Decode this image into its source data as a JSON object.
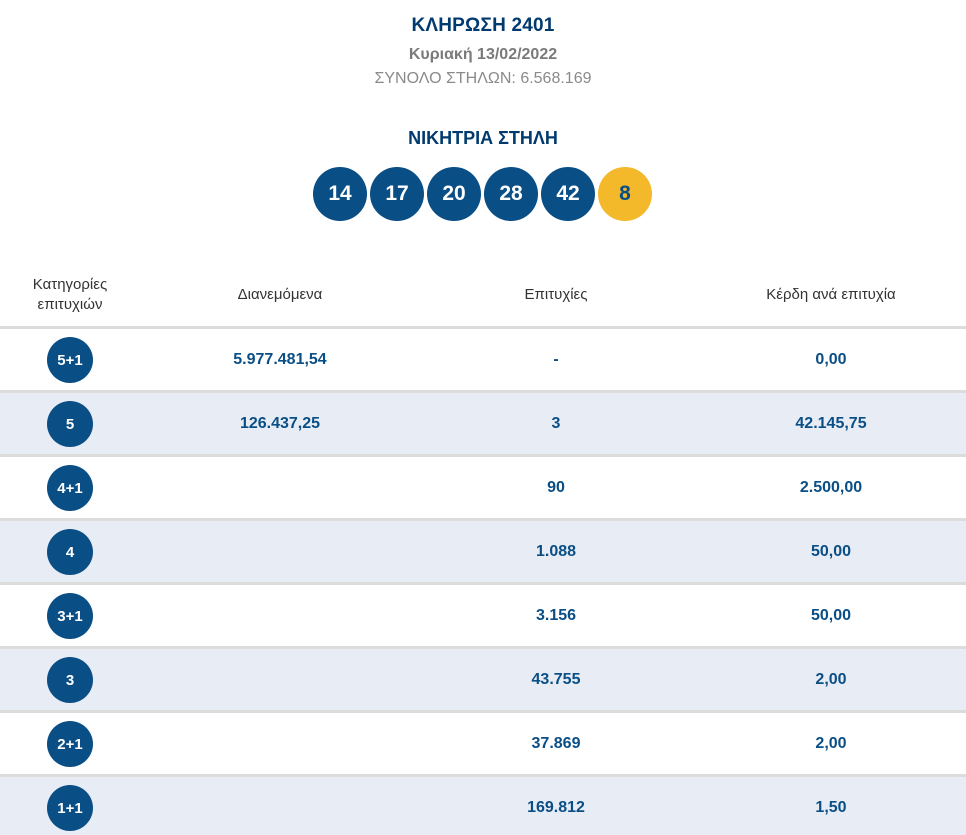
{
  "header": {
    "draw_title": "ΚΛΗΡΩΣΗ 2401",
    "draw_date": "Κυριακή 13/02/2022",
    "total_columns": "ΣΥΝΟΛΟ ΣΤΗΛΩΝ: 6.568.169"
  },
  "winning": {
    "title": "ΝΙΚΗΤΡΙΑ ΣΤΗΛΗ",
    "numbers": [
      "14",
      "17",
      "20",
      "28",
      "42"
    ],
    "joker": "8",
    "colors": {
      "ball": "#0a4e86",
      "joker": "#f3b92a"
    }
  },
  "table": {
    "columns": {
      "category": "Κατηγορίες επιτυχιών",
      "distributed": "Διανεμόμενα",
      "winners": "Επιτυχίες",
      "prize": "Κέρδη ανά επιτυχία"
    },
    "rows": [
      {
        "category": "5+1",
        "distributed": "5.977.481,54",
        "winners": "-",
        "prize": "0,00"
      },
      {
        "category": "5",
        "distributed": "126.437,25",
        "winners": "3",
        "prize": "42.145,75"
      },
      {
        "category": "4+1",
        "distributed": "",
        "winners": "90",
        "prize": "2.500,00"
      },
      {
        "category": "4",
        "distributed": "",
        "winners": "1.088",
        "prize": "50,00"
      },
      {
        "category": "3+1",
        "distributed": "",
        "winners": "3.156",
        "prize": "50,00"
      },
      {
        "category": "3",
        "distributed": "",
        "winners": "43.755",
        "prize": "2,00"
      },
      {
        "category": "2+1",
        "distributed": "",
        "winners": "37.869",
        "prize": "2,00"
      },
      {
        "category": "1+1",
        "distributed": "",
        "winners": "169.812",
        "prize": "1,50"
      }
    ]
  }
}
